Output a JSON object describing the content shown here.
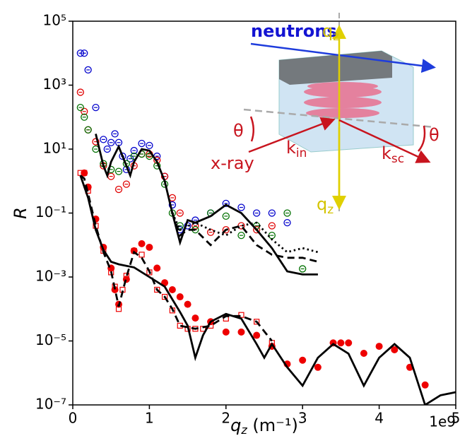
{
  "chart_data": {
    "type": "scatter",
    "y_label": "R",
    "x_label": {
      "text": "q",
      "sub": "z",
      "unit": " (m⁻¹)"
    },
    "x_offset_label": "1e9",
    "xlim": [
      0,
      5
    ],
    "ylim": [
      1e-07,
      100000.0
    ],
    "y_scale": "log",
    "xticks": [
      0,
      1,
      2,
      3,
      4,
      5
    ],
    "yticks": [
      {
        "value": 100000.0,
        "label": "10⁵"
      },
      {
        "value": 1000.0,
        "label": "10³"
      },
      {
        "value": 10.0,
        "label": "10¹"
      },
      {
        "value": 0.1,
        "label": "10⁻¹"
      },
      {
        "value": 0.001,
        "label": "10⁻³"
      },
      {
        "value": 1e-05,
        "label": "10⁻⁵"
      },
      {
        "value": 1e-07,
        "label": "10⁻⁷"
      }
    ],
    "series": [
      {
        "color": "#0000cc",
        "marker": "open-circle",
        "x": [
          0.1,
          0.15,
          0.2,
          0.3,
          0.4,
          0.45,
          0.5,
          0.55,
          0.6,
          0.65,
          0.7,
          0.75,
          0.8,
          0.9,
          1.0,
          1.1,
          1.2,
          1.3,
          1.4,
          1.5,
          1.6,
          1.8,
          2.0,
          2.2,
          2.4,
          2.6,
          2.8
        ],
        "values": [
          10000.0,
          10000.0,
          3000.0,
          200.0,
          20.0,
          10.0,
          16.0,
          30.0,
          16.0,
          6,
          2.3,
          5,
          9,
          15.0,
          13.0,
          6,
          1.4,
          0.18,
          0.03,
          0.04,
          0.06,
          0.1,
          0.2,
          0.15,
          0.1,
          0.1,
          0.05
        ]
      },
      {
        "color": "#e00000",
        "marker": "open-circle",
        "x": [
          0.1,
          0.15,
          0.2,
          0.3,
          0.4,
          0.5,
          0.6,
          0.7,
          0.8,
          0.9,
          1.0,
          1.1,
          1.2,
          1.3,
          1.4,
          1.6,
          1.8,
          2.0,
          2.2,
          2.4,
          2.6
        ],
        "values": [
          600.0,
          150.0,
          40.0,
          17.0,
          3,
          1.4,
          0.55,
          0.8,
          3,
          7,
          7,
          4.5,
          1.4,
          0.3,
          0.1,
          0.04,
          0.025,
          0.03,
          0.04,
          0.03,
          0.04
        ]
      },
      {
        "color": "#007000",
        "marker": "open-circle",
        "x": [
          0.1,
          0.15,
          0.2,
          0.3,
          0.4,
          0.5,
          0.6,
          0.7,
          0.8,
          0.9,
          1.0,
          1.1,
          1.2,
          1.3,
          1.4,
          1.6,
          1.8,
          2.0,
          2.2,
          2.4,
          2.6,
          2.8,
          3.0
        ],
        "values": [
          200.0,
          100.0,
          40.0,
          10.0,
          3.5,
          2.3,
          2,
          3.5,
          6,
          7,
          6,
          3,
          0.8,
          0.1,
          0.04,
          0.03,
          0.1,
          0.08,
          0.02,
          0.04,
          0.02,
          0.1,
          0.0018
        ]
      },
      {
        "color": "#000000",
        "marker": "line",
        "dash": "solid",
        "x": [
          0.3,
          0.4,
          0.45,
          0.5,
          0.6,
          0.7,
          0.75,
          0.8,
          0.9,
          1.0,
          1.1,
          1.2,
          1.3,
          1.4,
          1.5,
          1.6,
          1.8,
          2.0,
          2.2,
          2.4,
          2.6,
          2.8,
          3.0,
          3.2
        ],
        "values": [
          30.0,
          3,
          1.5,
          4,
          12.0,
          3,
          1.5,
          4,
          10.0,
          9,
          4,
          1,
          0.1,
          0.012,
          0.06,
          0.05,
          0.08,
          0.18,
          0.1,
          0.03,
          0.008,
          0.0015,
          0.0012,
          0.0012
        ]
      },
      {
        "color": "#000000",
        "marker": "line",
        "dash": "dashed",
        "x": [
          1.3,
          1.4,
          1.5,
          1.6,
          1.8,
          2.0,
          2.2,
          2.4,
          2.6,
          2.8,
          3.0,
          3.2
        ],
        "values": [
          0.1,
          0.02,
          0.03,
          0.03,
          0.01,
          0.03,
          0.04,
          0.01,
          0.005,
          0.004,
          0.004,
          0.003
        ]
      },
      {
        "color": "#000000",
        "marker": "line",
        "dash": "dotted",
        "x": [
          1.3,
          1.4,
          1.6,
          1.8,
          2.0,
          2.2,
          2.4,
          2.6,
          2.8,
          3.0,
          3.2
        ],
        "values": [
          0.1,
          0.03,
          0.05,
          0.03,
          0.02,
          0.04,
          0.05,
          0.015,
          0.006,
          0.008,
          0.006
        ]
      },
      {
        "color": "#ee0000",
        "marker": "filled-circle",
        "x": [
          0.15,
          0.2,
          0.3,
          0.4,
          0.5,
          0.55,
          0.6,
          0.7,
          0.8,
          0.9,
          1.0,
          1.1,
          1.2,
          1.3,
          1.4,
          1.5,
          1.6,
          1.8,
          2.0,
          2.2,
          2.4,
          2.6,
          2.8,
          3.0,
          3.2,
          3.4,
          3.5,
          3.6,
          3.8,
          4.0,
          4.2,
          4.4,
          4.6
        ],
        "values": [
          1.8,
          0.65,
          0.065,
          0.0085,
          0.0019,
          0.0004,
          0.00014,
          0.00085,
          0.0066,
          0.011,
          0.0085,
          0.0019,
          0.00066,
          0.0004,
          0.00024,
          0.00014,
          5.2e-05,
          4e-05,
          1.9e-05,
          1.9e-05,
          1.5e-05,
          6.8e-06,
          1.9e-06,
          2.5e-06,
          1.5e-06,
          8.7e-06,
          8.7e-06,
          8.7e-06,
          4.1e-06,
          6.8e-06,
          5.3e-06,
          1.5e-06,
          4.2e-07
        ]
      },
      {
        "color": "#ee0000",
        "marker": "open-square",
        "x": [
          0.1,
          0.15,
          0.2,
          0.3,
          0.4,
          0.5,
          0.55,
          0.6,
          0.65,
          0.7,
          0.8,
          0.9,
          1.0,
          1.1,
          1.2,
          1.3,
          1.4,
          1.5,
          1.6,
          1.7,
          1.8,
          2.0,
          2.2,
          2.4,
          2.6
        ],
        "values": [
          1.8,
          1.8,
          0.5,
          0.04,
          0.0066,
          0.0014,
          0.0005,
          0.0001,
          0.0004,
          0.0011,
          0.0066,
          0.005,
          0.0014,
          0.0004,
          0.00024,
          9e-05,
          3e-05,
          2.4e-05,
          2.4e-05,
          2.4e-05,
          3e-05,
          5e-05,
          6.5e-05,
          4e-05,
          8.7e-06
        ]
      },
      {
        "color": "#000000",
        "marker": "line",
        "dash": "solid",
        "x": [
          0.1,
          0.2,
          0.3,
          0.4,
          0.5,
          0.6,
          0.8,
          1.0,
          1.2,
          1.3,
          1.4,
          1.5,
          1.6,
          1.7,
          1.8,
          2.0,
          2.2,
          2.4,
          2.5,
          2.6,
          2.8,
          3.0,
          3.2,
          3.4,
          3.6,
          3.8,
          4.0,
          4.2,
          4.4,
          4.6,
          4.8,
          5.0
        ],
        "values": [
          1.5,
          0.3,
          0.03,
          0.007,
          0.003,
          0.0025,
          0.002,
          0.001,
          0.0005,
          0.0002,
          8e-05,
          3e-05,
          3e-06,
          1.5e-05,
          4e-05,
          7e-05,
          5e-05,
          8e-06,
          3e-06,
          8e-06,
          1.5e-06,
          4e-07,
          3e-06,
          8e-06,
          4e-06,
          4e-07,
          3e-06,
          8e-06,
          3e-06,
          1e-07,
          2e-07,
          2.5e-07
        ]
      },
      {
        "color": "#000000",
        "marker": "line",
        "dash": "dashed",
        "x": [
          0.1,
          0.15,
          0.2,
          0.3,
          0.4,
          0.5,
          0.6,
          0.7,
          0.8,
          0.9,
          1.0,
          1.1,
          1.2,
          1.3,
          1.4,
          1.6,
          1.8,
          2.0,
          2.2,
          2.4,
          2.6
        ],
        "values": [
          1.5,
          1.2,
          0.4,
          0.04,
          0.006,
          0.0015,
          0.00012,
          0.001,
          0.006,
          0.004,
          0.0015,
          0.0004,
          0.00024,
          0.0001,
          3e-05,
          2.4e-05,
          3e-05,
          6e-05,
          6e-05,
          4e-05,
          1e-05
        ]
      }
    ],
    "annotations": [
      {
        "text": "neutrons",
        "color": "#1414d2"
      },
      {
        "text": "q",
        "sub": "z",
        "color": "#d4c400"
      },
      {
        "text": "θ",
        "color": "#c8141e"
      },
      {
        "text": "x-ray",
        "color": "#c8141e"
      },
      {
        "text": "k",
        "sub": "in",
        "color": "#c8141e"
      },
      {
        "text": "k",
        "sub": "sc",
        "color": "#c8141e"
      },
      {
        "text": "θ",
        "color": "#c8141e"
      },
      {
        "text": "q",
        "sub": "z",
        "color": "#d4c400"
      }
    ]
  }
}
